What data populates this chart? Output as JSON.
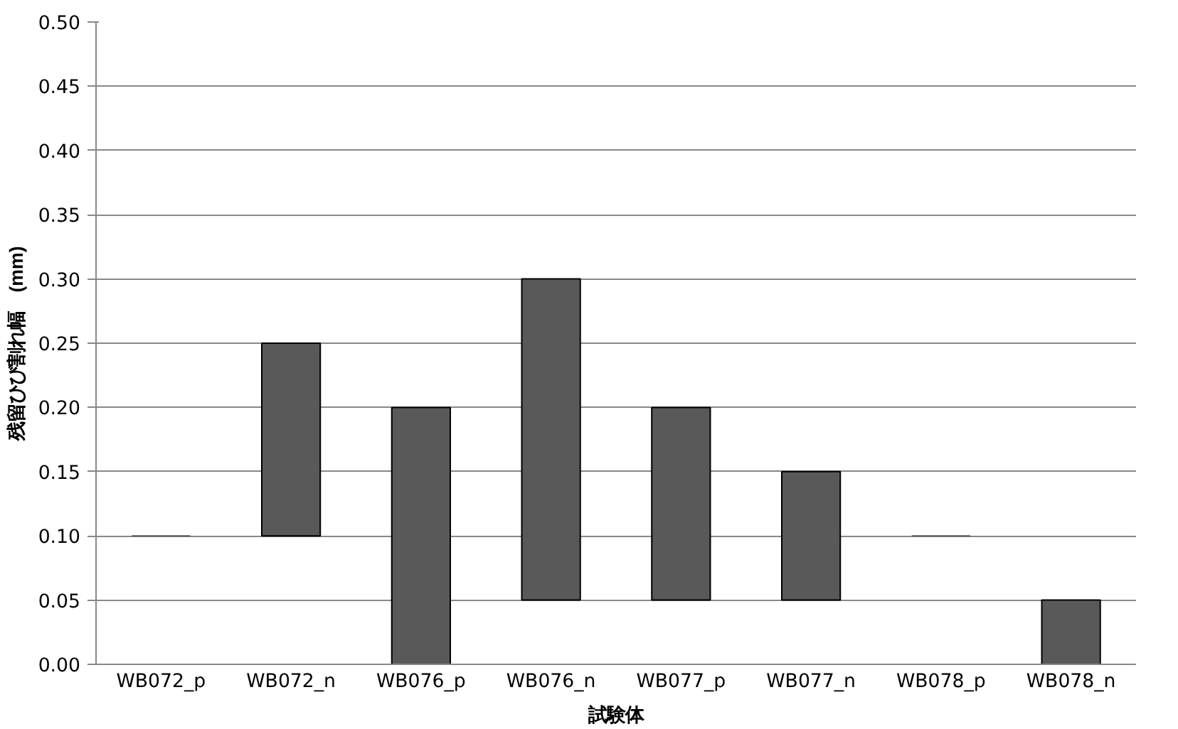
{
  "chart_data": {
    "type": "bar",
    "xlabel": "試験体",
    "ylabel": "残留ひび割れ幅　(mm)",
    "categories": [
      "WB072_p",
      "WB072_n",
      "WB076_p",
      "WB076_n",
      "WB077_p",
      "WB077_n",
      "WB078_p",
      "WB078_n"
    ],
    "base": [
      0.1,
      0.1,
      0.0,
      0.05,
      0.05,
      0.05,
      0.1,
      0.0
    ],
    "values": [
      0.0,
      0.15,
      0.2,
      0.25,
      0.15,
      0.1,
      0.0,
      0.05
    ],
    "color": "#595959",
    "ylim": [
      0,
      0.5
    ],
    "yticks": [
      {
        "value": 0,
        "label": "0.00"
      },
      {
        "value": 0.05,
        "label": "0.05"
      },
      {
        "value": 0.1,
        "label": "0.10"
      },
      {
        "value": 0.15,
        "label": "0.15"
      },
      {
        "value": 0.2,
        "label": "0.20"
      },
      {
        "value": 0.25,
        "label": "0.25"
      },
      {
        "value": 0.3,
        "label": "0.30"
      },
      {
        "value": 0.35,
        "label": "0.35"
      },
      {
        "value": 0.4,
        "label": "0.40"
      },
      {
        "value": 0.45,
        "label": "0.45"
      },
      {
        "value": 0.5,
        "label": "0.50"
      }
    ],
    "grid": "y"
  }
}
